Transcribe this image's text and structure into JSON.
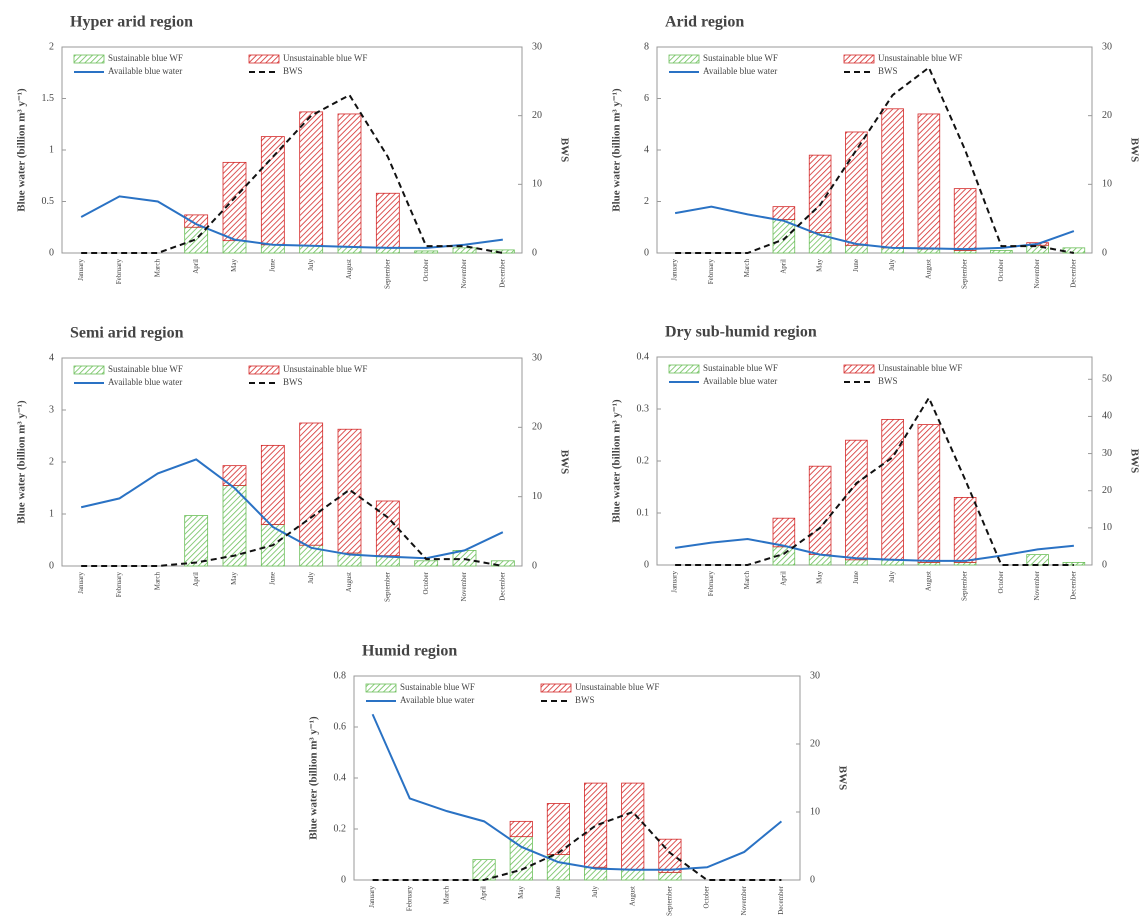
{
  "chart_data": [
    {
      "type": "bar",
      "title": "Hyper arid region",
      "y_label": "Blue water (billion m³ y⁻¹)",
      "y2_label": "BWS",
      "stacked": true,
      "categories": [
        "January",
        "February",
        "March",
        "April",
        "May",
        "June",
        "July",
        "August",
        "September",
        "October",
        "November",
        "December"
      ],
      "ylim": [
        0,
        2
      ],
      "yticks": [
        0,
        0.5,
        1,
        1.5,
        2
      ],
      "y2lim": [
        0,
        30
      ],
      "y2ticks": [
        0,
        10,
        20,
        30
      ],
      "series": [
        {
          "name": "Sustainable blue WF",
          "kind": "bar",
          "color": "#6cbf5a",
          "values": [
            0,
            0,
            0,
            0.25,
            0.12,
            0.08,
            0.07,
            0.06,
            0.05,
            0.02,
            0.05,
            0.03
          ]
        },
        {
          "name": "Unsustainable blue WF",
          "kind": "bar",
          "color": "#d42a2a",
          "values": [
            0,
            0,
            0,
            0.12,
            0.76,
            1.05,
            1.3,
            1.29,
            0.53,
            0,
            0,
            0
          ]
        },
        {
          "name": "Available blue water",
          "kind": "line",
          "color": "#2a72c4",
          "values": [
            0.35,
            0.55,
            0.5,
            0.28,
            0.13,
            0.08,
            0.07,
            0.06,
            0.05,
            0.05,
            0.08,
            0.13
          ]
        },
        {
          "name": "BWS",
          "kind": "line",
          "dashed": true,
          "axis": "y2",
          "color": "#111111",
          "values": [
            0,
            0,
            0,
            2,
            8,
            14,
            20,
            23,
            14,
            1,
            1,
            0
          ]
        }
      ]
    },
    {
      "type": "bar",
      "title": "Arid region",
      "y_label": "Blue water (billion m³ y⁻¹)",
      "y2_label": "BWS",
      "stacked": true,
      "categories": [
        "January",
        "February",
        "March",
        "April",
        "May",
        "June",
        "July",
        "August",
        "September",
        "October",
        "November",
        "December"
      ],
      "ylim": [
        0,
        8
      ],
      "yticks": [
        0,
        2,
        4,
        6,
        8
      ],
      "y2lim": [
        0,
        30
      ],
      "y2ticks": [
        0,
        10,
        20,
        30
      ],
      "series": [
        {
          "name": "Sustainable blue WF",
          "kind": "bar",
          "color": "#6cbf5a",
          "values": [
            0,
            0,
            0,
            1.3,
            0.8,
            0.3,
            0.2,
            0.15,
            0.1,
            0.1,
            0.3,
            0.2
          ]
        },
        {
          "name": "Unsustainable blue WF",
          "kind": "bar",
          "color": "#d42a2a",
          "values": [
            0,
            0,
            0,
            0.5,
            3,
            4.4,
            5.4,
            5.25,
            2.4,
            0,
            0.1,
            0
          ]
        },
        {
          "name": "Available blue water",
          "kind": "line",
          "color": "#2a72c4",
          "values": [
            1.55,
            1.8,
            1.5,
            1.25,
            0.7,
            0.35,
            0.2,
            0.18,
            0.15,
            0.2,
            0.35,
            0.85
          ]
        },
        {
          "name": "BWS",
          "kind": "line",
          "dashed": true,
          "axis": "y2",
          "color": "#111111",
          "values": [
            0,
            0,
            0,
            2,
            7,
            15,
            23,
            27,
            15,
            1,
            1,
            0
          ]
        }
      ]
    },
    {
      "type": "bar",
      "title": "Semi arid region",
      "y_label": "Blue water (billion m³ y⁻¹)",
      "y2_label": "BWS",
      "stacked": true,
      "categories": [
        "January",
        "February",
        "March",
        "April",
        "May",
        "June",
        "July",
        "August",
        "September",
        "October",
        "November",
        "December"
      ],
      "ylim": [
        0,
        4
      ],
      "yticks": [
        0,
        1,
        2,
        3,
        4
      ],
      "y2lim": [
        0,
        30
      ],
      "y2ticks": [
        0,
        10,
        20,
        30
      ],
      "series": [
        {
          "name": "Sustainable blue WF",
          "kind": "bar",
          "color": "#6cbf5a",
          "values": [
            0,
            0,
            0,
            0.97,
            1.55,
            0.8,
            0.4,
            0.25,
            0.2,
            0.1,
            0.3,
            0.1
          ]
        },
        {
          "name": "Unsustainable blue WF",
          "kind": "bar",
          "color": "#d42a2a",
          "values": [
            0,
            0,
            0,
            0,
            0.38,
            1.52,
            2.35,
            2.38,
            1.05,
            0,
            0,
            0
          ]
        },
        {
          "name": "Available blue water",
          "kind": "line",
          "color": "#2a72c4",
          "values": [
            1.13,
            1.3,
            1.78,
            2.05,
            1.5,
            0.75,
            0.35,
            0.22,
            0.18,
            0.15,
            0.3,
            0.65
          ]
        },
        {
          "name": "BWS",
          "kind": "line",
          "dashed": true,
          "axis": "y2",
          "color": "#111111",
          "values": [
            0,
            0,
            0,
            0.5,
            1.5,
            3,
            7,
            11,
            7,
            1,
            1,
            0
          ]
        }
      ]
    },
    {
      "type": "bar",
      "title": "Dry sub-humid  region",
      "y_label": "Blue water (billion m³ y⁻¹)",
      "y2_label": "BWS",
      "stacked": true,
      "categories": [
        "January",
        "February",
        "March",
        "April",
        "May",
        "June",
        "July",
        "August",
        "September",
        "October",
        "November",
        "December"
      ],
      "ylim": [
        0,
        0.4
      ],
      "yticks": [
        0,
        0.1,
        0.2,
        0.3,
        0.4
      ],
      "y2lim": [
        0,
        56
      ],
      "y2ticks": [
        0,
        10,
        20,
        30,
        40,
        50
      ],
      "series": [
        {
          "name": "Sustainable blue WF",
          "kind": "bar",
          "color": "#6cbf5a",
          "values": [
            0,
            0,
            0,
            0.035,
            0.02,
            0.01,
            0.01,
            0.005,
            0.005,
            0,
            0.02,
            0.005
          ]
        },
        {
          "name": "Unsustainable blue WF",
          "kind": "bar",
          "color": "#d42a2a",
          "values": [
            0,
            0,
            0,
            0.055,
            0.17,
            0.23,
            0.27,
            0.265,
            0.125,
            0,
            0,
            0
          ]
        },
        {
          "name": "Available blue water",
          "kind": "line",
          "color": "#2a72c4",
          "values": [
            0.033,
            0.043,
            0.05,
            0.037,
            0.02,
            0.013,
            0.01,
            0.008,
            0.008,
            0.018,
            0.03,
            0.037
          ]
        },
        {
          "name": "BWS",
          "kind": "line",
          "dashed": true,
          "axis": "y2",
          "color": "#111111",
          "values": [
            0,
            0,
            0,
            3,
            10,
            22,
            29,
            45,
            23,
            0,
            0,
            0
          ]
        }
      ]
    },
    {
      "type": "bar",
      "title": "Humid region",
      "y_label": "Blue water (billion m³ y⁻¹)",
      "y2_label": "BWS",
      "stacked": true,
      "categories": [
        "January",
        "February",
        "March",
        "April",
        "May",
        "June",
        "July",
        "August",
        "September",
        "October",
        "November",
        "December"
      ],
      "ylim": [
        0,
        0.8
      ],
      "yticks": [
        0,
        0.2,
        0.4,
        0.6,
        0.8
      ],
      "y2lim": [
        0,
        30
      ],
      "y2ticks": [
        0,
        10,
        20,
        30
      ],
      "series": [
        {
          "name": "Sustainable blue WF",
          "kind": "bar",
          "color": "#6cbf5a",
          "values": [
            0,
            0,
            0,
            0.08,
            0.17,
            0.1,
            0.05,
            0.04,
            0.03,
            0,
            0,
            0
          ]
        },
        {
          "name": "Unsustainable blue WF",
          "kind": "bar",
          "color": "#d42a2a",
          "values": [
            0,
            0,
            0,
            0,
            0.06,
            0.2,
            0.33,
            0.34,
            0.13,
            0,
            0,
            0
          ]
        },
        {
          "name": "Available blue water",
          "kind": "line",
          "color": "#2a72c4",
          "values": [
            0.65,
            0.32,
            0.27,
            0.23,
            0.13,
            0.07,
            0.045,
            0.04,
            0.04,
            0.05,
            0.11,
            0.23
          ]
        },
        {
          "name": "BWS",
          "kind": "line",
          "dashed": true,
          "axis": "y2",
          "color": "#111111",
          "values": [
            0,
            0,
            0,
            0,
            1.5,
            4,
            8,
            10,
            4,
            0,
            0,
            0
          ]
        }
      ]
    }
  ]
}
